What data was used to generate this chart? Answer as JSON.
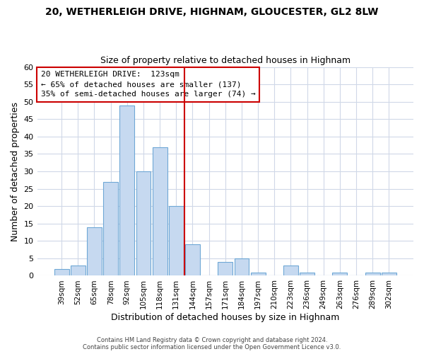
{
  "title": "20, WETHERLEIGH DRIVE, HIGHNAM, GLOUCESTER, GL2 8LW",
  "subtitle": "Size of property relative to detached houses in Highnam",
  "xlabel": "Distribution of detached houses by size in Highnam",
  "ylabel": "Number of detached properties",
  "bar_labels": [
    "39sqm",
    "52sqm",
    "65sqm",
    "78sqm",
    "92sqm",
    "105sqm",
    "118sqm",
    "131sqm",
    "144sqm",
    "157sqm",
    "171sqm",
    "184sqm",
    "197sqm",
    "210sqm",
    "223sqm",
    "236sqm",
    "249sqm",
    "263sqm",
    "276sqm",
    "289sqm",
    "302sqm"
  ],
  "bar_values": [
    2,
    3,
    14,
    27,
    49,
    30,
    37,
    20,
    9,
    0,
    4,
    5,
    1,
    0,
    3,
    1,
    0,
    1,
    0,
    1,
    1
  ],
  "bar_color": "#c6d9f0",
  "bar_edgecolor": "#6fa8d6",
  "vline_color": "#cc0000",
  "vline_x_index": 7.5,
  "ylim": [
    0,
    60
  ],
  "yticks": [
    0,
    5,
    10,
    15,
    20,
    25,
    30,
    35,
    40,
    45,
    50,
    55,
    60
  ],
  "legend_title": "20 WETHERLEIGH DRIVE:  123sqm",
  "legend_line1": "← 65% of detached houses are smaller (137)",
  "legend_line2": "35% of semi-detached houses are larger (74) →",
  "legend_box_color": "#ffffff",
  "legend_box_edgecolor": "#cc0000",
  "footer1": "Contains HM Land Registry data © Crown copyright and database right 2024.",
  "footer2": "Contains public sector information licensed under the Open Government Licence v3.0.",
  "bg_color": "#ffffff",
  "grid_color": "#d0d8e8"
}
